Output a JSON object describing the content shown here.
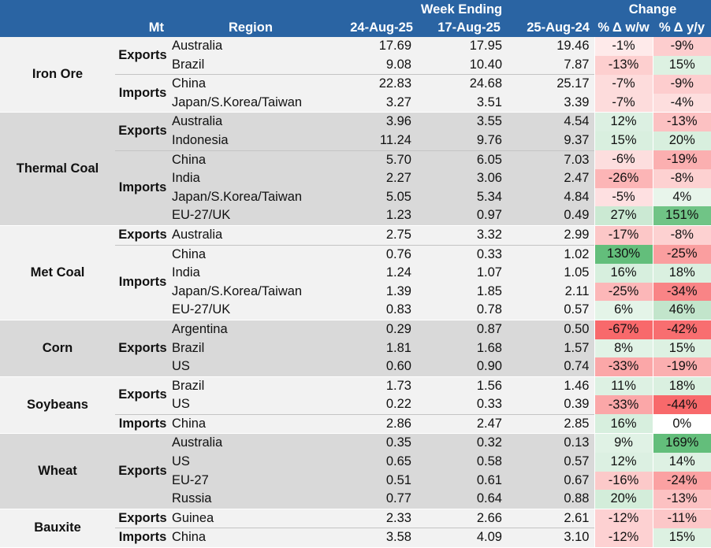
{
  "header": {
    "top_week": "Week Ending",
    "top_change": "Change",
    "unit": "Mt",
    "region": "Region",
    "col1": "24-Aug-25",
    "col2": "17-Aug-25",
    "col3": "25-Aug-24",
    "pct_ww": "% Δ w/w",
    "pct_yy": "% Δ y/y"
  },
  "colors": {
    "header_bg": "#2a64a3",
    "band_light": "#f2f2f2",
    "band_dark": "#d9d9d9",
    "positive_scale": "#63be7b",
    "negative_scale": "#f8696b"
  },
  "groups": [
    {
      "name": "Iron Ore",
      "rows": [
        {
          "flow": "Exports",
          "region": "Australia",
          "v1": "17.69",
          "v2": "17.95",
          "v3": "19.46",
          "ww": "-1%",
          "yy": "-9%",
          "wwv": -1,
          "yyv": -9
        },
        {
          "flow": "",
          "region": "Brazil",
          "v1": "9.08",
          "v2": "10.40",
          "v3": "7.87",
          "ww": "-13%",
          "yy": "15%",
          "wwv": -13,
          "yyv": 15
        },
        {
          "flow": "Imports",
          "region": "China",
          "v1": "22.83",
          "v2": "24.68",
          "v3": "25.17",
          "ww": "-7%",
          "yy": "-9%",
          "wwv": -7,
          "yyv": -9
        },
        {
          "flow": "",
          "region": "Japan/S.Korea/Taiwan",
          "v1": "3.27",
          "v2": "3.51",
          "v3": "3.39",
          "ww": "-7%",
          "yy": "-4%",
          "wwv": -7,
          "yyv": -4
        }
      ]
    },
    {
      "name": "Thermal Coal",
      "rows": [
        {
          "flow": "Exports",
          "region": "Australia",
          "v1": "3.96",
          "v2": "3.55",
          "v3": "4.54",
          "ww": "12%",
          "yy": "-13%",
          "wwv": 12,
          "yyv": -13
        },
        {
          "flow": "",
          "region": "Indonesia",
          "v1": "11.24",
          "v2": "9.76",
          "v3": "9.37",
          "ww": "15%",
          "yy": "20%",
          "wwv": 15,
          "yyv": 20
        },
        {
          "flow": "Imports",
          "region": "China",
          "v1": "5.70",
          "v2": "6.05",
          "v3": "7.03",
          "ww": "-6%",
          "yy": "-19%",
          "wwv": -6,
          "yyv": -19
        },
        {
          "flow": "",
          "region": "India",
          "v1": "2.27",
          "v2": "3.06",
          "v3": "2.47",
          "ww": "-26%",
          "yy": "-8%",
          "wwv": -26,
          "yyv": -8
        },
        {
          "flow": "",
          "region": "Japan/S.Korea/Taiwan",
          "v1": "5.05",
          "v2": "5.34",
          "v3": "4.84",
          "ww": "-5%",
          "yy": "4%",
          "wwv": -5,
          "yyv": 4
        },
        {
          "flow": "",
          "region": "EU-27/UK",
          "v1": "1.23",
          "v2": "0.97",
          "v3": "0.49",
          "ww": "27%",
          "yy": "151%",
          "wwv": 27,
          "yyv": 151
        }
      ]
    },
    {
      "name": "Met Coal",
      "rows": [
        {
          "flow": "Exports",
          "region": "Australia",
          "v1": "2.75",
          "v2": "3.32",
          "v3": "2.99",
          "ww": "-17%",
          "yy": "-8%",
          "wwv": -17,
          "yyv": -8
        },
        {
          "flow": "Imports",
          "region": "China",
          "v1": "0.76",
          "v2": "0.33",
          "v3": "1.02",
          "ww": "130%",
          "yy": "-25%",
          "wwv": 130,
          "yyv": -25
        },
        {
          "flow": "",
          "region": "India",
          "v1": "1.24",
          "v2": "1.07",
          "v3": "1.05",
          "ww": "16%",
          "yy": "18%",
          "wwv": 16,
          "yyv": 18
        },
        {
          "flow": "",
          "region": "Japan/S.Korea/Taiwan",
          "v1": "1.39",
          "v2": "1.85",
          "v3": "2.11",
          "ww": "-25%",
          "yy": "-34%",
          "wwv": -25,
          "yyv": -34
        },
        {
          "flow": "",
          "region": "EU-27/UK",
          "v1": "0.83",
          "v2": "0.78",
          "v3": "0.57",
          "ww": "6%",
          "yy": "46%",
          "wwv": 6,
          "yyv": 46
        }
      ]
    },
    {
      "name": "Corn",
      "rows": [
        {
          "flow": "Exports",
          "region": "Argentina",
          "v1": "0.29",
          "v2": "0.87",
          "v3": "0.50",
          "ww": "-67%",
          "yy": "-42%",
          "wwv": -67,
          "yyv": -42
        },
        {
          "flow": "",
          "region": "Brazil",
          "v1": "1.81",
          "v2": "1.68",
          "v3": "1.57",
          "ww": "8%",
          "yy": "15%",
          "wwv": 8,
          "yyv": 15
        },
        {
          "flow": "",
          "region": "US",
          "v1": "0.60",
          "v2": "0.90",
          "v3": "0.74",
          "ww": "-33%",
          "yy": "-19%",
          "wwv": -33,
          "yyv": -19
        }
      ]
    },
    {
      "name": "Soybeans",
      "rows": [
        {
          "flow": "Exports",
          "region": "Brazil",
          "v1": "1.73",
          "v2": "1.56",
          "v3": "1.46",
          "ww": "11%",
          "yy": "18%",
          "wwv": 11,
          "yyv": 18
        },
        {
          "flow": "",
          "region": "US",
          "v1": "0.22",
          "v2": "0.33",
          "v3": "0.39",
          "ww": "-33%",
          "yy": "-44%",
          "wwv": -33,
          "yyv": -44
        },
        {
          "flow": "Imports",
          "region": "China",
          "v1": "2.86",
          "v2": "2.47",
          "v3": "2.85",
          "ww": "16%",
          "yy": "0%",
          "wwv": 16,
          "yyv": 0
        }
      ]
    },
    {
      "name": "Wheat",
      "rows": [
        {
          "flow": "Exports",
          "region": "Australia",
          "v1": "0.35",
          "v2": "0.32",
          "v3": "0.13",
          "ww": "9%",
          "yy": "169%",
          "wwv": 9,
          "yyv": 169
        },
        {
          "flow": "",
          "region": "US",
          "v1": "0.65",
          "v2": "0.58",
          "v3": "0.57",
          "ww": "12%",
          "yy": "14%",
          "wwv": 12,
          "yyv": 14
        },
        {
          "flow": "",
          "region": "EU-27",
          "v1": "0.51",
          "v2": "0.61",
          "v3": "0.67",
          "ww": "-16%",
          "yy": "-24%",
          "wwv": -16,
          "yyv": -24
        },
        {
          "flow": "",
          "region": "Russia",
          "v1": "0.77",
          "v2": "0.64",
          "v3": "0.88",
          "ww": "20%",
          "yy": "-13%",
          "wwv": 20,
          "yyv": -13
        }
      ]
    },
    {
      "name": "Bauxite",
      "rows": [
        {
          "flow": "Exports",
          "region": "Guinea",
          "v1": "2.33",
          "v2": "2.66",
          "v3": "2.61",
          "ww": "-12%",
          "yy": "-11%",
          "wwv": -12,
          "yyv": -11
        },
        {
          "flow": "Imports",
          "region": "China",
          "v1": "3.58",
          "v2": "4.09",
          "v3": "3.10",
          "ww": "-12%",
          "yy": "15%",
          "wwv": -12,
          "yyv": 15
        }
      ]
    }
  ]
}
